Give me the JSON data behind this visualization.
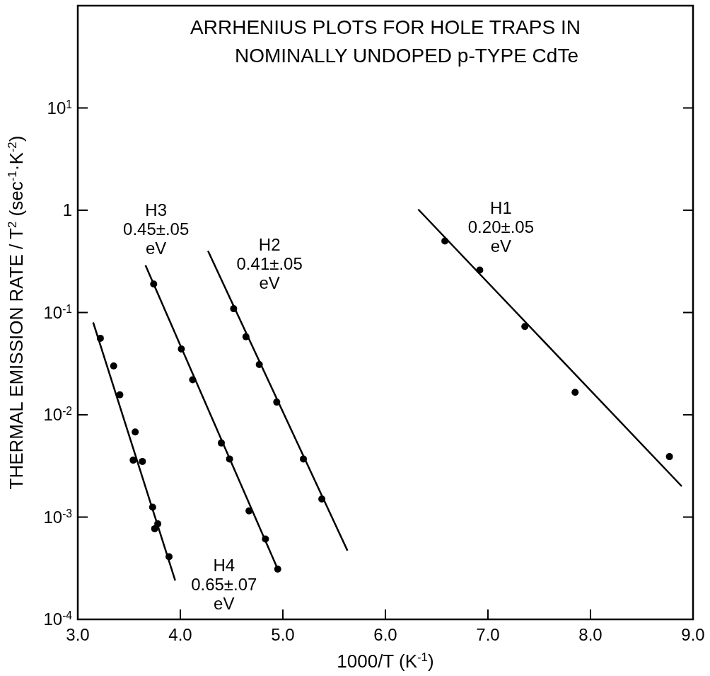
{
  "chart_data": {
    "type": "scatter",
    "title": "ARRHENIUS PLOTS FOR HOLE TRAPS IN\nNOMINALLY UNDOPED p-TYPE CdTe",
    "xlabel": "1000/T  (K$^{-1}$)",
    "ylabel": "THERMAL EMISSION RATE / T$^{2}$ (sec$^{-1}$·K$^{-2}$)",
    "log": "y",
    "xlim": [
      3,
      9
    ],
    "ylim": [
      0.0001,
      100
    ],
    "xticks": [
      {
        "value": 3,
        "label": "3.0"
      },
      {
        "value": 4,
        "label": "4.0"
      },
      {
        "value": 5,
        "label": "5.0"
      },
      {
        "value": 6,
        "label": "6.0"
      },
      {
        "value": 7,
        "label": "7.0"
      },
      {
        "value": 8,
        "label": "8.0"
      },
      {
        "value": 9,
        "label": "9.0"
      }
    ],
    "yticks": [
      {
        "value": 0.0001,
        "label": "10$^{-4}$"
      },
      {
        "value": 0.001,
        "label": "10$^{-3}$"
      },
      {
        "value": 0.01,
        "label": "10$^{-2}$"
      },
      {
        "value": 0.1,
        "label": "10$^{-1}$"
      },
      {
        "value": 1,
        "label": "1"
      },
      {
        "value": 10,
        "label": "10$^{1}$"
      }
    ],
    "grid": false,
    "marker": "circle",
    "series": [
      {
        "color": "#000000",
        "x": [
          3.22,
          3.35,
          3.41,
          3.56,
          3.54,
          3.63,
          3.73,
          3.75,
          3.78,
          3.89
        ],
        "values": [
          0.056,
          0.03,
          0.0157,
          0.0068,
          0.0036,
          0.0035,
          0.00125,
          0.00077,
          0.00086,
          0.00041
        ]
      },
      {
        "color": "#000000",
        "x": [
          3.74,
          4.01,
          4.12,
          4.4,
          4.48,
          4.67,
          4.83,
          4.95
        ],
        "values": [
          0.19,
          0.044,
          0.022,
          0.0053,
          0.0037,
          0.00115,
          0.00061,
          0.00031
        ]
      },
      {
        "color": "#000000",
        "x": [
          4.52,
          4.64,
          4.77,
          4.94,
          5.2,
          5.38
        ],
        "values": [
          0.109,
          0.058,
          0.031,
          0.0133,
          0.0037,
          0.0015
        ]
      },
      {
        "color": "#000000",
        "x": [
          6.58,
          6.92,
          7.36,
          7.85,
          8.77
        ],
        "values": [
          0.5,
          0.26,
          0.073,
          0.0166,
          0.0039
        ]
      },
      {
        "type": "line",
        "name": "H4\n0.65±.07\neV",
        "color": "#000000",
        "marker": "none",
        "line_style": "solid",
        "x": [
          3.15,
          3.95
        ],
        "values": [
          0.08,
          0.00024
        ]
      },
      {
        "type": "line",
        "name": "H3\n0.45±.05\neV",
        "color": "#000000",
        "marker": "none",
        "line_style": "solid",
        "x": [
          3.66,
          4.95
        ],
        "values": [
          0.29,
          0.00031
        ]
      },
      {
        "type": "line",
        "name": "H2\n0.41±.05\neV",
        "color": "#000000",
        "marker": "none",
        "line_style": "solid",
        "x": [
          4.27,
          5.63
        ],
        "values": [
          0.4,
          0.00047
        ]
      },
      {
        "type": "line",
        "name": "H1\n0.20±.05\neV",
        "color": "#000000",
        "marker": "none",
        "line_style": "solid",
        "x": [
          6.32,
          8.89
        ],
        "values": [
          1.02,
          0.002
        ]
      }
    ]
  }
}
